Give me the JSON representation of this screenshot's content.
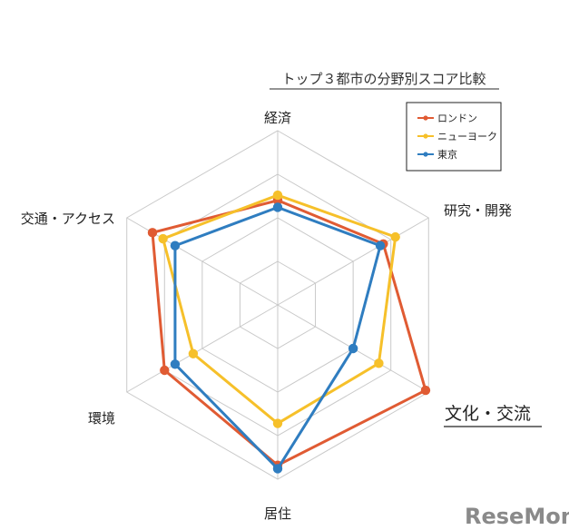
{
  "chart_data": {
    "type": "radar",
    "title": "トップ３都市の分野別スコア比較",
    "axes": [
      "経済",
      "研究・開発",
      "文化・交流",
      "居住",
      "環境",
      "交通・アクセス"
    ],
    "highlighted_axis": "文化・交流",
    "range": [
      0,
      100
    ],
    "grid_levels": 4,
    "series": [
      {
        "name": "ロンドン",
        "color": "#e05b33",
        "values": [
          60,
          70,
          98,
          92,
          75,
          83
        ]
      },
      {
        "name": "ニューヨーク",
        "color": "#f6c02a",
        "values": [
          63,
          78,
          67,
          68,
          56,
          76
        ]
      },
      {
        "name": "東京",
        "color": "#2f7dc0",
        "values": [
          56,
          68,
          50,
          94,
          68,
          68
        ]
      }
    ],
    "legend_position": "top-right"
  },
  "watermark": "ReseMom"
}
